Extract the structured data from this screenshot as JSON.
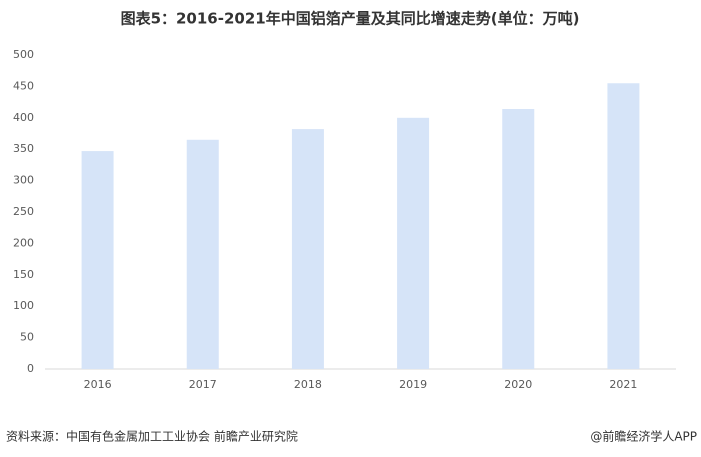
{
  "chart_data": {
    "type": "bar",
    "title": "图表5：2016-2021年中国铝箔产量及其同比增速走势(单位：万吨)",
    "categories": [
      "2016",
      "2017",
      "2018",
      "2019",
      "2020",
      "2021"
    ],
    "values": [
      347,
      365,
      382,
      400,
      414,
      455
    ],
    "color": "#d6e4f8",
    "ylim": [
      0,
      500
    ],
    "yticks": [
      0,
      50,
      100,
      150,
      200,
      250,
      300,
      350,
      400,
      450,
      500
    ],
    "grid": false,
    "source": "资料来源：中国有色金属加工工业协会 前瞻产业研究院",
    "credit": "@前瞻经济学人APP"
  }
}
